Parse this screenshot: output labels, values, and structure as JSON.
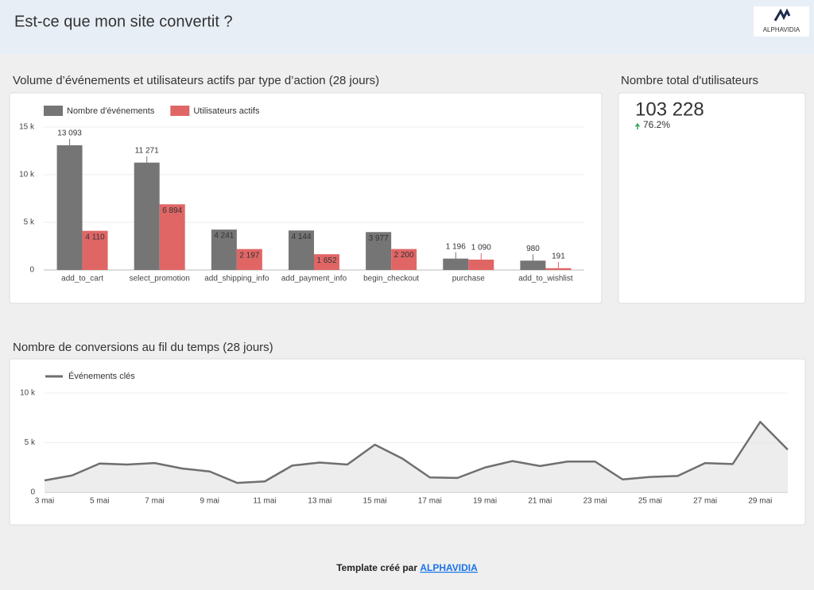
{
  "header": {
    "title": "Est-ce que mon site convertit ?",
    "logo": "ALPHAVIDIA"
  },
  "scorecard": {
    "title": "Nombre total d'utilisateurs",
    "value": "103 228",
    "change": "76.2%"
  },
  "footer": {
    "text": "Template créé par",
    "link": "ALPHAVIDIA"
  },
  "chart_data": [
    {
      "type": "bar",
      "title": "Volume d’événements et utilisateurs actifs par type d’action (28 jours)",
      "categories": [
        "add_to_cart",
        "select_promotion",
        "add_shipping_info",
        "add_payment_info",
        "begin_checkout",
        "purchase",
        "add_to_wishlist"
      ],
      "series": [
        {
          "name": "Nombre d'événements",
          "color": "#757575",
          "values": [
            13093,
            11271,
            4241,
            4144,
            3977,
            1196,
            980
          ],
          "value_labels": [
            "13 093",
            "11 271",
            "4 241",
            "4 144",
            "3 977",
            "1 196",
            "980"
          ]
        },
        {
          "name": "Utilisateurs actifs",
          "color": "#e06666",
          "values": [
            4110,
            6894,
            2197,
            1652,
            2200,
            1090,
            191
          ],
          "value_labels": [
            "4 110",
            "6 894",
            "2 197",
            "1 652",
            "2 200",
            "1 090",
            "191"
          ]
        }
      ],
      "ylim": [
        0,
        15000
      ],
      "yticks": [
        0,
        {
          "value": 5000,
          "label": "5 k"
        },
        {
          "value": 10000,
          "label": "10 k"
        },
        {
          "value": 15000,
          "label": "15 k"
        }
      ],
      "grid": true
    },
    {
      "type": "line",
      "title": "Nombre de conversions au fil du temps (28 jours)",
      "categories": [
        "3 mai",
        null,
        "5 mai",
        null,
        "7 mai",
        null,
        "9 mai",
        null,
        "11 mai",
        null,
        "13 mai",
        null,
        "15 mai",
        null,
        "17 mai",
        null,
        "19 mai",
        null,
        "21 mai",
        null,
        "23 mai",
        null,
        "25 mai",
        null,
        "27 mai",
        null,
        "29 mai",
        null
      ],
      "series": [
        {
          "name": "Événements clés",
          "color": "#6f6f6f",
          "values": [
            1200,
            1700,
            2900,
            2800,
            2950,
            2400,
            2100,
            950,
            1100,
            2700,
            3000,
            2800,
            4800,
            3400,
            1500,
            1450,
            2500,
            3150,
            2650,
            3100,
            3100,
            1300,
            1550,
            1650,
            2950,
            2850,
            7100,
            4300
          ]
        }
      ],
      "ylim": [
        0,
        10000
      ],
      "yticks": [
        0,
        {
          "value": 5000,
          "label": "5 k"
        },
        {
          "value": 10000,
          "label": "10 k"
        }
      ],
      "grid": true
    }
  ]
}
